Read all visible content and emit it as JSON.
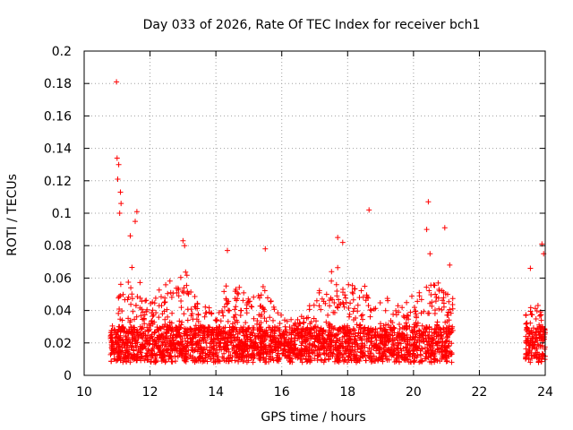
{
  "chart_data": {
    "type": "scatter",
    "title": "Day 033 of 2026, Rate Of TEC Index for receiver bch1",
    "xlabel": "GPS time / hours",
    "ylabel": "ROTI / TECUs",
    "xlim": [
      10,
      24
    ],
    "ylim": [
      0,
      0.2
    ],
    "x_ticks": [
      "10",
      "12",
      "14",
      "16",
      "18",
      "20",
      "22",
      "24"
    ],
    "y_ticks": [
      "0",
      "0.02",
      "0.04",
      "0.06",
      "0.08",
      "0.1",
      "0.12",
      "0.14",
      "0.16",
      "0.18",
      "0.2"
    ],
    "grid": true,
    "marker": "plus",
    "marker_color": "#ff0000",
    "series": [
      {
        "segments": [
          {
            "x_start": 10.8,
            "x_end": 21.2
          },
          {
            "x_start": 23.4,
            "x_end": 24.0
          }
        ],
        "highlights": [
          {
            "x": 10.98,
            "y": 0.181
          },
          {
            "x": 11.0,
            "y": 0.134
          },
          {
            "x": 11.05,
            "y": 0.13
          },
          {
            "x": 11.02,
            "y": 0.121
          },
          {
            "x": 11.1,
            "y": 0.113
          },
          {
            "x": 11.12,
            "y": 0.106
          },
          {
            "x": 11.08,
            "y": 0.1
          },
          {
            "x": 11.6,
            "y": 0.101
          },
          {
            "x": 11.55,
            "y": 0.095
          },
          {
            "x": 11.4,
            "y": 0.086
          },
          {
            "x": 13.0,
            "y": 0.083
          },
          {
            "x": 13.05,
            "y": 0.08
          },
          {
            "x": 14.35,
            "y": 0.077
          },
          {
            "x": 15.5,
            "y": 0.078
          },
          {
            "x": 17.7,
            "y": 0.085
          },
          {
            "x": 17.85,
            "y": 0.082
          },
          {
            "x": 18.65,
            "y": 0.102
          },
          {
            "x": 20.45,
            "y": 0.107
          },
          {
            "x": 20.4,
            "y": 0.09
          },
          {
            "x": 20.95,
            "y": 0.091
          },
          {
            "x": 20.5,
            "y": 0.075
          },
          {
            "x": 21.1,
            "y": 0.068
          },
          {
            "x": 23.55,
            "y": 0.066
          },
          {
            "x": 23.9,
            "y": 0.081
          },
          {
            "x": 23.95,
            "y": 0.075
          }
        ]
      }
    ]
  }
}
